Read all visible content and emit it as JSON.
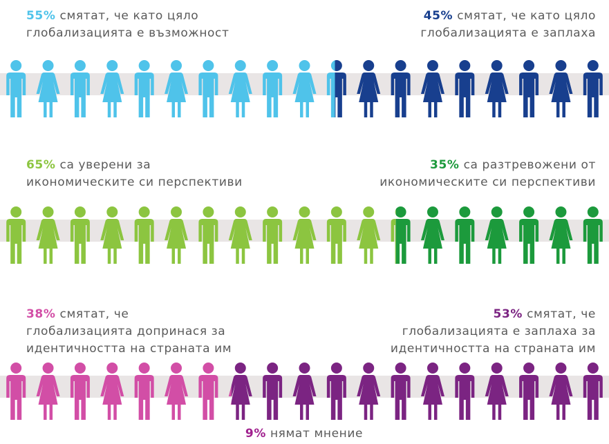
{
  "rows": [
    {
      "left": {
        "percent": "55%",
        "color": "#4fc3ea",
        "lines": [
          "смятат, че като цяло",
          "глобализацията  е възможност"
        ]
      },
      "right": {
        "percent": "45%",
        "color": "#183f8e",
        "lines": [
          "смятат, че като цяло",
          "глобализацията  е заплаха"
        ]
      }
    },
    {
      "left": {
        "percent": "65%",
        "color": "#8cc540",
        "lines": [
          "са уверени за",
          "икономическите  си перспективи"
        ]
      },
      "right": {
        "percent": "35%",
        "color": "#1c9a3c",
        "lines": [
          "са разтревожени  от",
          "икономическите  си перспективи"
        ]
      }
    },
    {
      "left": {
        "percent": "38%",
        "color": "#d24ea6",
        "lines": [
          "смятат, че",
          "глобализацията  допринася за",
          "идентичността на страната им"
        ]
      },
      "right": {
        "percent": "53%",
        "color": "#7b2482",
        "lines": [
          "смятат, че",
          "глобализацията  е заплаха за",
          "идентичността  на страната  им"
        ]
      }
    }
  ],
  "footer": {
    "percent": "9%",
    "color": "#a0208e",
    "text": "нямат мнение"
  }
}
